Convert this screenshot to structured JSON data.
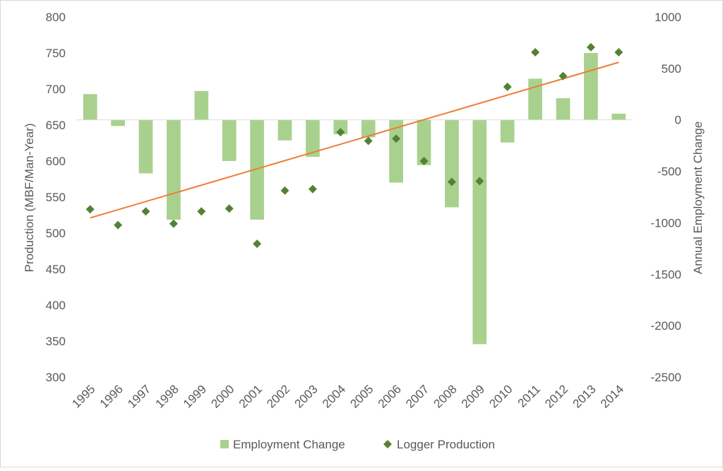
{
  "chart_data": {
    "type": "bar+scatter",
    "title": "",
    "ylabel_left": "Production (MBF/Man-Year)",
    "ylabel_right": "Annual Employment Change",
    "xlabel": "",
    "categories": [
      "1995",
      "1996",
      "1997",
      "1998",
      "1999",
      "2000",
      "2001",
      "2002",
      "2003",
      "2004",
      "2005",
      "2006",
      "2007",
      "2008",
      "2009",
      "2010",
      "2011",
      "2012",
      "2013",
      "2014"
    ],
    "ylim_left": [
      300,
      800
    ],
    "yticks_left": [
      "300",
      "350",
      "400",
      "450",
      "500",
      "550",
      "600",
      "650",
      "700",
      "750",
      "800"
    ],
    "ylim_right": [
      -2500,
      1000
    ],
    "yticks_right": [
      "-2500",
      "-2000",
      "-1500",
      "-1000",
      "-500",
      "0",
      "500",
      "1000"
    ],
    "series": [
      {
        "name": "Employment Change",
        "type": "bar",
        "axis": "right",
        "color": "#a9d18e",
        "values": [
          250,
          -60,
          -520,
          -970,
          280,
          -400,
          -970,
          -200,
          -360,
          -140,
          -170,
          -610,
          -440,
          -850,
          -2180,
          -220,
          400,
          210,
          650,
          60
        ]
      },
      {
        "name": "Logger Production",
        "type": "scatter",
        "axis": "left",
        "color": "#548235",
        "values": [
          533,
          511,
          530,
          513,
          530,
          534,
          485,
          559,
          561,
          640,
          628,
          631,
          600,
          571,
          572,
          703,
          751,
          718,
          758,
          751
        ]
      }
    ],
    "trendline": {
      "series": "Logger Production",
      "type": "linear",
      "color": "#ed7d31",
      "start_value": 521,
      "end_value": 737
    },
    "legend": [
      "Employment Change",
      "Logger Production"
    ],
    "legend_position": "bottom",
    "grid": false
  }
}
